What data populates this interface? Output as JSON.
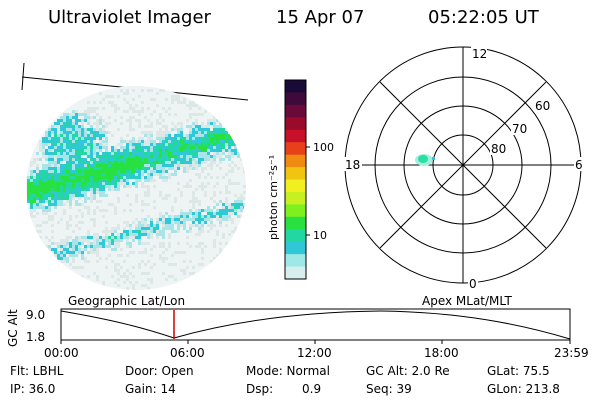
{
  "header": {
    "title": "Ultraviolet Imager",
    "date": "15 Apr 07",
    "time": "05:22:05 UT"
  },
  "colorbar": {
    "unit_label": "photon cm⁻²s⁻¹",
    "ticks": [
      "100",
      "10"
    ],
    "colors": [
      "#1a0a3a",
      "#3d0a3a",
      "#6a0a3a",
      "#9a0a2a",
      "#c8102a",
      "#e8401a",
      "#f08a10",
      "#f0c410",
      "#f0f020",
      "#c8f020",
      "#7ef020",
      "#28e040",
      "#20d8a0",
      "#30c8d8",
      "#a0e8e8",
      "#d8eeee"
    ]
  },
  "polar_plot": {
    "mlt_labels": {
      "top": "12",
      "left": "18",
      "right": "6",
      "bottom": "0"
    },
    "lat_labels": [
      "60",
      "70",
      "80"
    ]
  },
  "timeline": {
    "y_axis_label": "GC Alt",
    "y_ticks": [
      "9.0",
      "1.8"
    ],
    "left_title": "Geographic Lat/Lon",
    "right_title": "Apex MLat/MLT",
    "x_ticks": [
      "00:00",
      "06:00",
      "12:00",
      "18:00",
      "23:59"
    ],
    "marker_color": "#cc0000"
  },
  "info": {
    "filter": "Flt: LBHL",
    "ip": "IP: 36.0",
    "door": "Door: Open",
    "gain": "Gain: 14",
    "mode": "Mode: Normal",
    "dsp_label": "Dsp:",
    "dsp_value": "0.9",
    "gc_alt": "GC Alt: 2.0 Re",
    "seq": "Seq: 39",
    "glat": "GLat:  75.5",
    "glon": "GLon: 213.8"
  }
}
